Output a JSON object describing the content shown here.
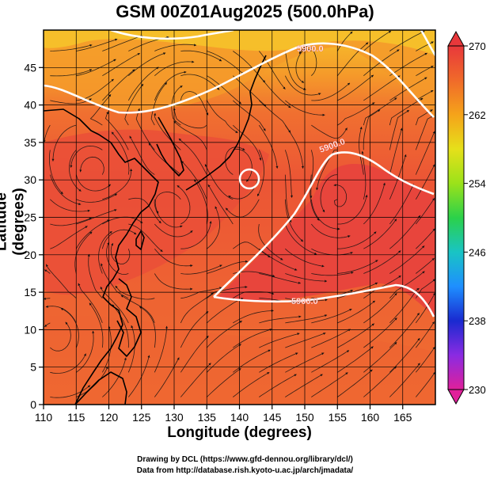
{
  "title": "GSM 00Z01Aug2025 (500.0hPa)",
  "x_axis": {
    "label": "Longitude (degrees)",
    "ticks": [
      "110",
      "115",
      "120",
      "125",
      "130",
      "135",
      "140",
      "145",
      "150",
      "155",
      "160",
      "165"
    ]
  },
  "y_axis": {
    "label": "Latitude  (degrees)",
    "ticks": [
      "0",
      "5",
      "10",
      "15",
      "20",
      "25",
      "30",
      "35",
      "40",
      "45"
    ]
  },
  "colorbar": {
    "ticks": [
      "230",
      "238",
      "246",
      "254",
      "262",
      "270"
    ],
    "colors": [
      "#e0209a",
      "#8a2be2",
      "#1a2ad0",
      "#1e8fff",
      "#19c4c4",
      "#2bd14a",
      "#9be21a",
      "#e6e01a",
      "#f5a31a",
      "#f06a2a",
      "#e8383b"
    ]
  },
  "contours": {
    "label": "5900.0",
    "color": "#ffffff"
  },
  "field_colors": {
    "deep_red": "#e8453c",
    "red": "#ec5535",
    "orange_red": "#f07030",
    "orange": "#f59a2a",
    "yellow_orange": "#f6c22a"
  },
  "credits": {
    "line1": "Drawing by DCL (https://www.gfd-dennou.org/library/dcl/)",
    "line2": "Data from http://database.rish.kyoto-u.ac.jp/arch/jmadata/"
  }
}
